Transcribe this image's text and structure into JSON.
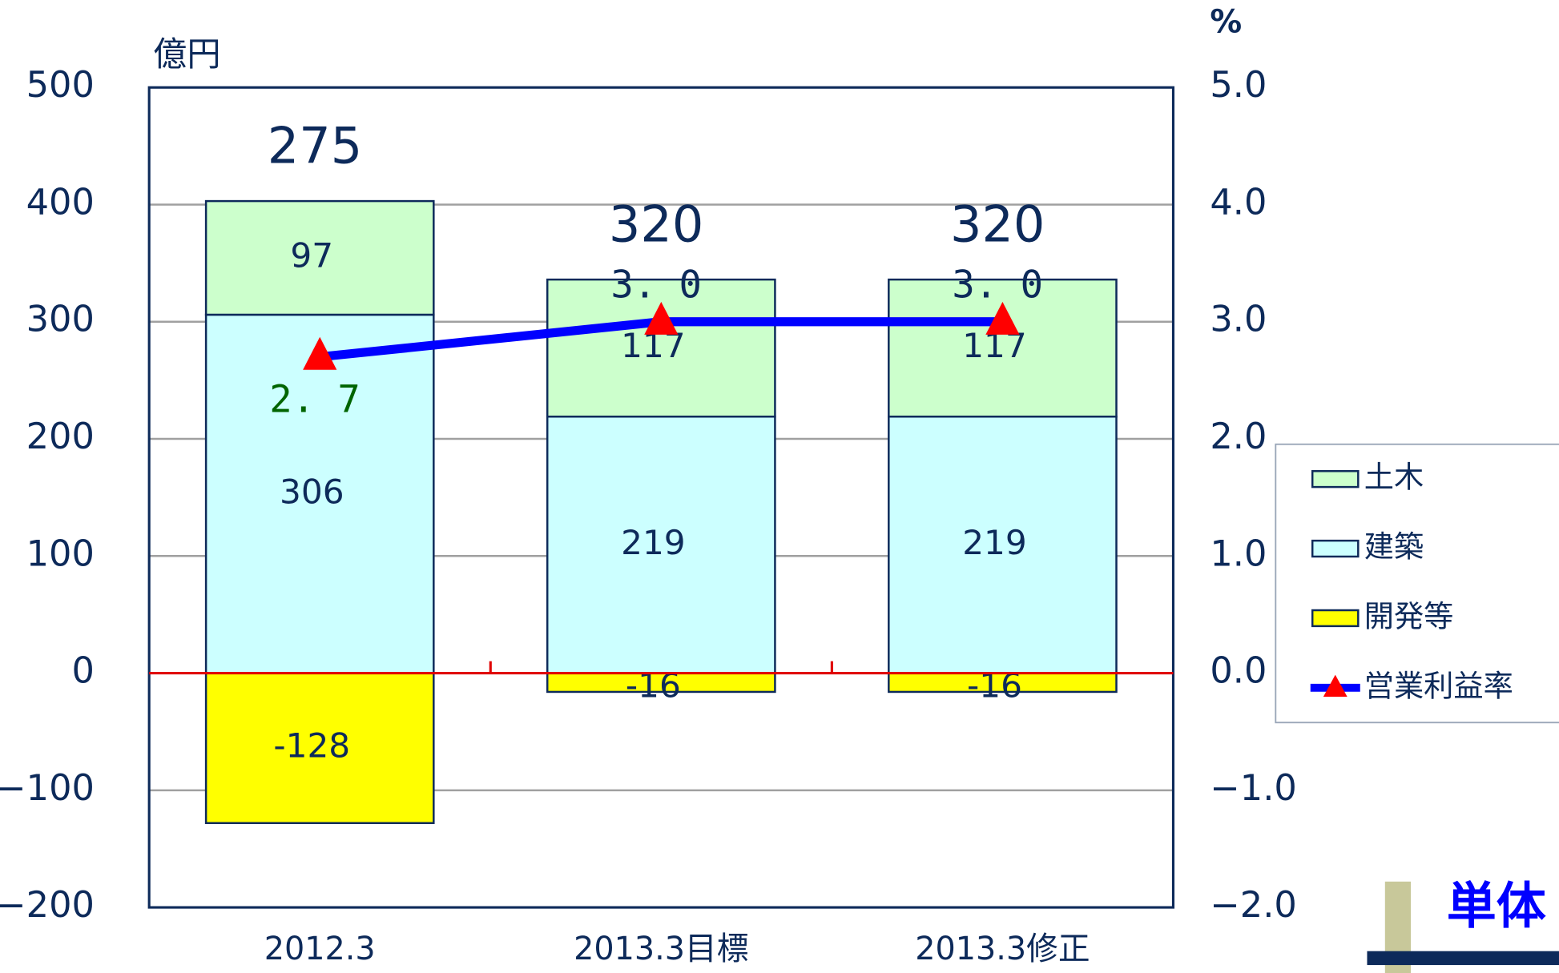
{
  "chart_data": {
    "type": "bar",
    "stacked": true,
    "title_corner": "単体",
    "ylabel": "億円",
    "y2label": "%",
    "categories": [
      "2012.3",
      "2013.3目標",
      "2013.3修正"
    ],
    "series": [
      {
        "name": "開発等",
        "color": "#ffff00",
        "values": [
          -128,
          -16,
          -16
        ]
      },
      {
        "name": "建築",
        "color": "#ccffff",
        "values": [
          306,
          219,
          219
        ]
      },
      {
        "name": "土木",
        "color": "#ccffcc",
        "values": [
          97,
          117,
          117
        ]
      },
      {
        "name": "営業利益率",
        "type": "line",
        "axis": "y2",
        "color": "#0000ff",
        "marker_color": "#ff0000",
        "values": [
          2.7,
          3.0,
          3.0
        ],
        "value_labels": [
          "2. 7",
          "3. 0",
          "3. 0"
        ]
      }
    ],
    "totals": [
      275,
      320,
      320
    ],
    "ylim": [
      -200,
      500
    ],
    "yticks": [
      {
        "value": -200,
        "label": "−200"
      },
      {
        "value": -100,
        "label": "−100"
      },
      0,
      100,
      200,
      300,
      400,
      500
    ],
    "y2lim": [
      -2,
      5
    ],
    "y2ticks": [
      {
        "value": -2,
        "label": "−2.0"
      },
      {
        "value": -1,
        "label": "−1.0"
      },
      {
        "value": 0,
        "label": "0.0"
      },
      {
        "value": 1,
        "label": "1.0"
      },
      {
        "value": 2,
        "label": "2.0"
      },
      {
        "value": 3,
        "label": "3.0"
      },
      {
        "value": 4,
        "label": "4.0"
      },
      {
        "value": 5,
        "label": "5.0"
      }
    ],
    "grid": true,
    "legend": "right"
  }
}
